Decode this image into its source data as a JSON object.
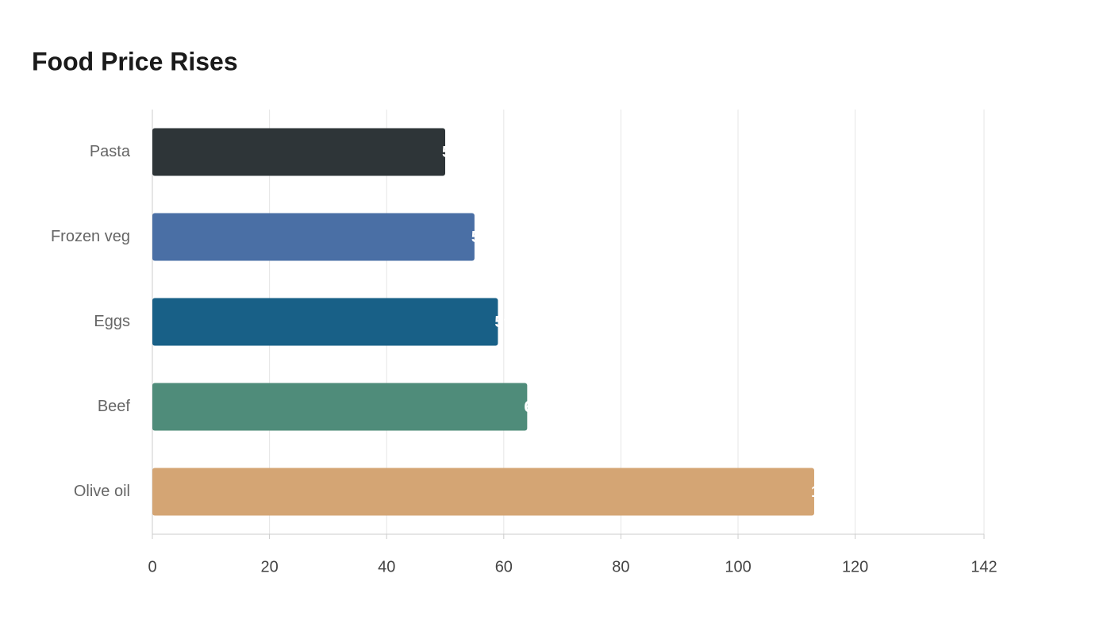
{
  "chart_data": {
    "type": "bar",
    "orientation": "horizontal",
    "title": "Food Price Rises",
    "categories": [
      "Pasta",
      "Frozen veg",
      "Eggs",
      "Beef",
      "Olive oil"
    ],
    "values": [
      50,
      55,
      59,
      64,
      113
    ],
    "colors": [
      "#2e3538",
      "#4a6fa5",
      "#186087",
      "#4f8c7a",
      "#d4a574"
    ],
    "xlim": [
      0,
      142
    ],
    "xticks": [
      0,
      20,
      40,
      60,
      80,
      100,
      120,
      142
    ],
    "grid": true
  }
}
